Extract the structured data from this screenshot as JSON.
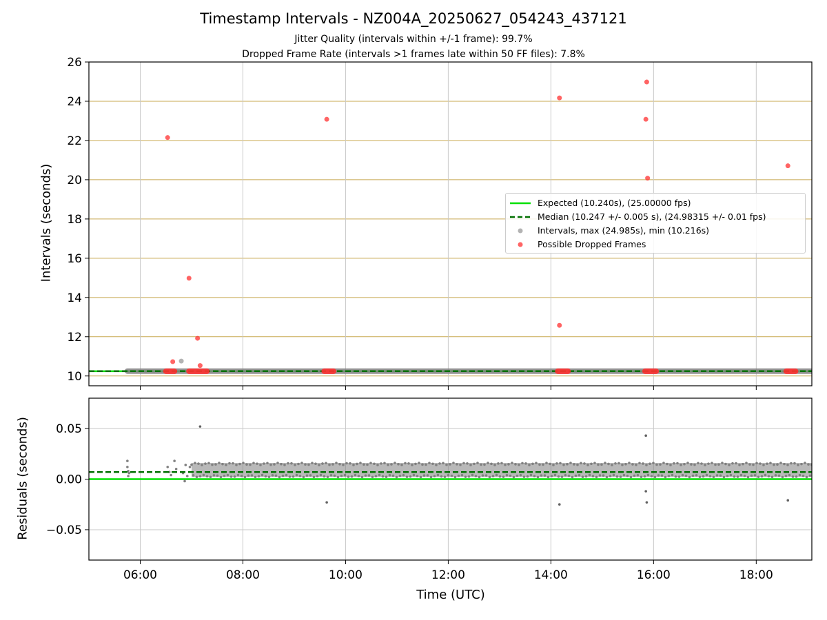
{
  "figure": {
    "title": "Timestamp Intervals - NZ004A_20250627_054243_437121",
    "subtitle_1": "Jitter Quality (intervals within +/-1 frame): 99.7%",
    "subtitle_2": "Dropped Frame Rate (intervals >1 frames late within 50 FF files): 7.8%",
    "xlabel": "Time (UTC)"
  },
  "colors": {
    "expected": "#00e000",
    "median": "#007000",
    "intervals": "#808080",
    "dropped": "#ff3030",
    "band_grid": "#c8a850"
  },
  "chart_data": [
    {
      "type": "scatter",
      "ylabel": "Intervals (seconds)",
      "xlim": [
        "05:00",
        "19:05"
      ],
      "ylim": [
        9.5,
        26
      ],
      "x_ticks": [
        "06:00",
        "08:00",
        "10:00",
        "12:00",
        "14:00",
        "16:00",
        "18:00"
      ],
      "y_ticks": [
        10,
        12,
        14,
        16,
        18,
        20,
        22,
        24,
        26
      ],
      "grid": true,
      "legend_position": "center-right",
      "legend": [
        "Expected (10.240s), (25.00000 fps)",
        "Median (10.247 +/- 0.005 s), (24.98315 +/- 0.01 fps)",
        "Intervals, max (24.985s), min (10.216s)",
        "Possible Dropped Frames"
      ],
      "expected_interval": 10.24,
      "median_interval": 10.247,
      "intervals_series": {
        "time_start": "05:45",
        "time_end": "19:05",
        "typical_value": 10.247,
        "outliers": [
          {
            "t": "06:48",
            "v": 10.76
          }
        ]
      },
      "dropped_frames_points": [
        {
          "t": "06:32",
          "v": 22.15
        },
        {
          "t": "06:38",
          "v": 10.73
        },
        {
          "t": "06:57",
          "v": 14.98
        },
        {
          "t": "07:07",
          "v": 11.92
        },
        {
          "t": "07:10",
          "v": 10.53
        },
        {
          "t": "09:38",
          "v": 23.08
        },
        {
          "t": "14:10",
          "v": 24.17
        },
        {
          "t": "14:10",
          "v": 12.58
        },
        {
          "t": "15:51",
          "v": 23.08
        },
        {
          "t": "15:52",
          "v": 24.98
        },
        {
          "t": "15:53",
          "v": 20.08
        },
        {
          "t": "18:37",
          "v": 20.71
        }
      ],
      "dropped_frames_clusters": [
        {
          "start": "06:30",
          "end": "06:40",
          "v": 10.24
        },
        {
          "start": "06:57",
          "end": "07:18",
          "v": 10.24
        },
        {
          "start": "09:35",
          "end": "09:46",
          "v": 10.24
        },
        {
          "start": "14:08",
          "end": "14:20",
          "v": 10.24
        },
        {
          "start": "15:50",
          "end": "16:03",
          "v": 10.24
        },
        {
          "start": "18:35",
          "end": "18:46",
          "v": 10.24
        }
      ]
    },
    {
      "type": "scatter",
      "ylabel": "Residuals (seconds)",
      "xlim": [
        "05:00",
        "19:05"
      ],
      "ylim": [
        -0.08,
        0.08
      ],
      "x_ticks": [
        "06:00",
        "08:00",
        "10:00",
        "12:00",
        "14:00",
        "16:00",
        "18:00"
      ],
      "y_ticks": [
        0.05,
        0.0,
        -0.05
      ],
      "y_tick_labels": [
        "0.05",
        "0.00",
        "−0.05"
      ],
      "grid": true,
      "expected_residual": 0.0,
      "median_residual": 0.007,
      "band": {
        "start": "07:00",
        "end": "19:05",
        "min": 0.002,
        "max": 0.016
      },
      "early_points": [
        {
          "t": "05:45",
          "v": 0.018
        },
        {
          "t": "05:45",
          "v": 0.012
        },
        {
          "t": "05:46",
          "v": 0.008
        },
        {
          "t": "05:47",
          "v": 0.006
        },
        {
          "t": "05:46",
          "v": 0.003
        },
        {
          "t": "06:32",
          "v": 0.012
        },
        {
          "t": "06:34",
          "v": 0.007
        },
        {
          "t": "06:36",
          "v": 0.004
        },
        {
          "t": "06:40",
          "v": 0.018
        },
        {
          "t": "06:42",
          "v": 0.01
        },
        {
          "t": "06:50",
          "v": 0.006
        },
        {
          "t": "06:53",
          "v": 0.014
        },
        {
          "t": "06:55",
          "v": 0.003
        },
        {
          "t": "06:58",
          "v": 0.012
        },
        {
          "t": "06:52",
          "v": -0.002
        }
      ],
      "outliers": [
        {
          "t": "07:10",
          "v": 0.052
        },
        {
          "t": "09:38",
          "v": -0.023
        },
        {
          "t": "14:10",
          "v": -0.025
        },
        {
          "t": "15:51",
          "v": 0.043
        },
        {
          "t": "15:51",
          "v": -0.012
        },
        {
          "t": "15:52",
          "v": -0.023
        },
        {
          "t": "18:37",
          "v": -0.021
        }
      ]
    }
  ]
}
